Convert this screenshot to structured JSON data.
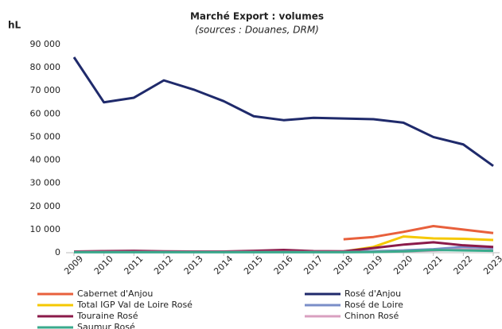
{
  "chart_data": {
    "type": "line",
    "title": "Marché Export : volumes",
    "subtitle": "(sources : Douanes, DRM)",
    "y_label": "hL",
    "categories": [
      "2009",
      "2010",
      "2011",
      "2012",
      "2013",
      "2014",
      "2015",
      "2016",
      "2017",
      "2018",
      "2019",
      "2020",
      "2021",
      "2022",
      "2023"
    ],
    "ylim": [
      0,
      90000
    ],
    "yticks": [
      {
        "value": 0,
        "label": "0"
      },
      {
        "value": 10000,
        "label": "10 000"
      },
      {
        "value": 20000,
        "label": "20 000"
      },
      {
        "value": 30000,
        "label": "30 000"
      },
      {
        "value": 40000,
        "label": "40 000"
      },
      {
        "value": 50000,
        "label": "50 000"
      },
      {
        "value": 60000,
        "label": "60 000"
      },
      {
        "value": 70000,
        "label": "70 000"
      },
      {
        "value": 80000,
        "label": "80 000"
      },
      {
        "value": 90000,
        "label": "90 000"
      }
    ],
    "series": [
      {
        "name": "Cabernet d'Anjou",
        "color": "#e8603c",
        "values": [
          null,
          null,
          null,
          null,
          null,
          null,
          null,
          null,
          null,
          5800,
          6800,
          9000,
          11500,
          10000,
          8500
        ]
      },
      {
        "name": "Rosé d'Anjou",
        "color": "#1f2a6b",
        "values": [
          84500,
          65000,
          67000,
          74500,
          70500,
          65500,
          59000,
          57300,
          58300,
          58000,
          57700,
          56200,
          50000,
          46800,
          37500
        ]
      },
      {
        "name": "Total IGP Val de Loire Rosé",
        "color": "#f5c800",
        "values": [
          null,
          null,
          null,
          null,
          null,
          null,
          null,
          null,
          null,
          500,
          2500,
          7000,
          6200,
          6000,
          5500
        ]
      },
      {
        "name": "Rosé de Loire",
        "color": "#7a8ec8",
        "values": [
          500,
          500,
          500,
          500,
          500,
          500,
          500,
          500,
          500,
          500,
          700,
          1000,
          1500,
          2500,
          2000
        ]
      },
      {
        "name": "Touraine Rosé",
        "color": "#8b1a4a",
        "values": [
          500,
          700,
          800,
          600,
          500,
          500,
          800,
          1200,
          700,
          600,
          2000,
          3500,
          4500,
          3200,
          2500
        ]
      },
      {
        "name": "Chinon Rosé",
        "color": "#d9a0c0",
        "values": [
          300,
          300,
          300,
          300,
          300,
          300,
          300,
          300,
          300,
          300,
          400,
          600,
          900,
          1500,
          1000
        ]
      },
      {
        "name": "Saumur Rosé",
        "color": "#3aaa8c",
        "values": [
          200,
          200,
          200,
          200,
          200,
          200,
          200,
          200,
          200,
          200,
          300,
          600,
          1200,
          1000,
          800
        ]
      }
    ]
  }
}
